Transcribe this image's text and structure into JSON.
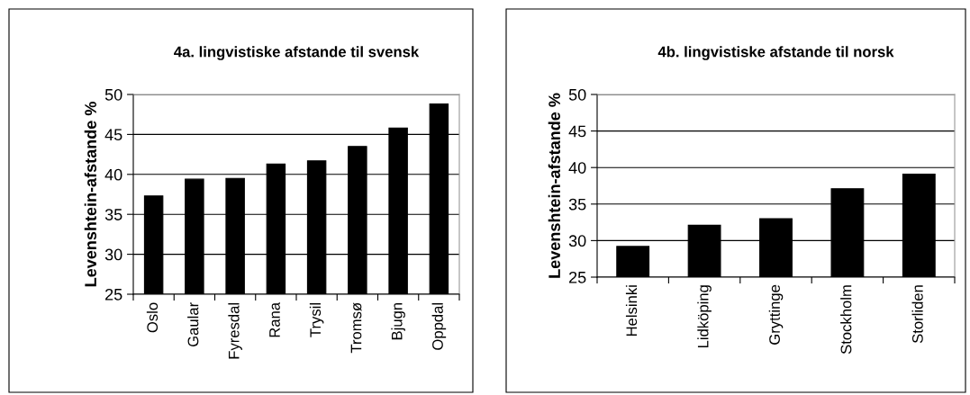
{
  "chart_data": [
    {
      "type": "bar",
      "title": "4a. lingvistiske afstande til svensk",
      "ylabel": "Levenshtein-afstande %",
      "categories": [
        "Oslo",
        "Gaular",
        "Fyresdal",
        "Rana",
        "Trysil",
        "Tromsø",
        "Bjugn",
        "Oppdal"
      ],
      "values": [
        37.3,
        39.4,
        39.5,
        41.3,
        41.7,
        43.5,
        45.8,
        48.8
      ],
      "color": "#000000",
      "ylim": [
        25,
        50
      ],
      "yticks": [
        25,
        30,
        35,
        40,
        45,
        50
      ],
      "grid": "y"
    },
    {
      "type": "bar",
      "title": "4b. lingvistiske afstande til norsk",
      "ylabel": "Levenshtein-afstande %",
      "categories": [
        "Helsinki",
        "Lidköping",
        "Gryttinge",
        "Stockholm",
        "Storliden"
      ],
      "values": [
        29.2,
        32.1,
        33.0,
        37.1,
        39.1
      ],
      "color": "#000000",
      "ylim": [
        25,
        50
      ],
      "yticks": [
        25,
        30,
        35,
        40,
        45,
        50
      ],
      "grid": "y"
    }
  ]
}
